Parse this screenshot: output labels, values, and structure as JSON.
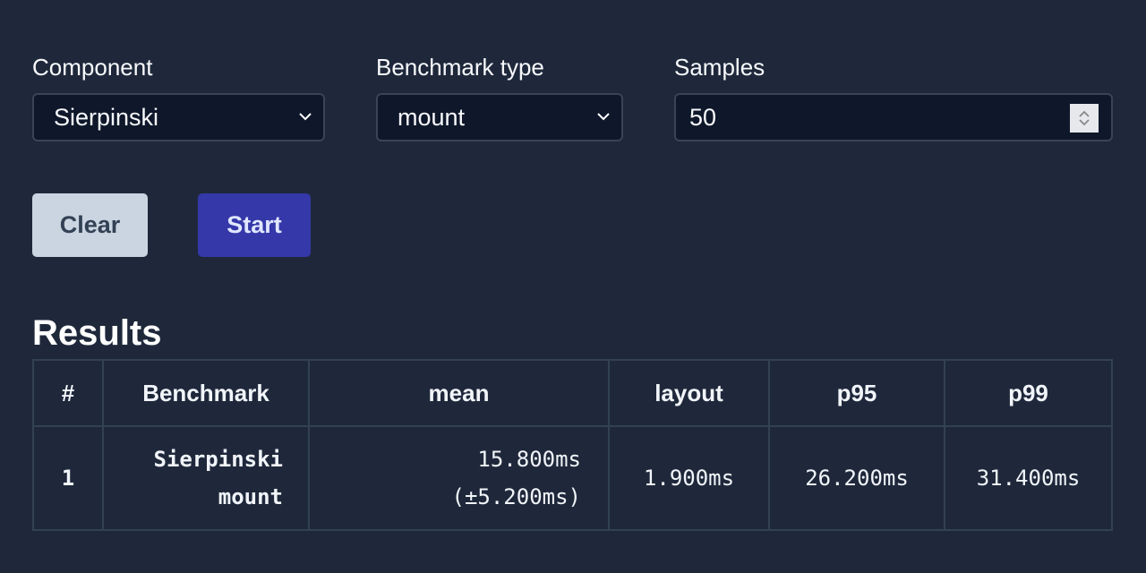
{
  "form": {
    "component": {
      "label": "Component",
      "value": "Sierpinski"
    },
    "benchmark_type": {
      "label": "Benchmark type",
      "value": "mount"
    },
    "samples": {
      "label": "Samples",
      "value": "50"
    }
  },
  "buttons": {
    "clear": "Clear",
    "start": "Start"
  },
  "colors": {
    "background": "#1f283b",
    "clear_bg": "#cbd5e1",
    "start_bg": "#3538a8"
  },
  "results": {
    "title": "Results",
    "columns": [
      "#",
      "Benchmark",
      "mean",
      "layout",
      "p95",
      "p99"
    ],
    "rows": [
      {
        "index": "1",
        "benchmark_line1": "Sierpinski",
        "benchmark_line2": "mount",
        "mean": "15.800ms",
        "mean_dev": "(±5.200ms)",
        "layout": "1.900ms",
        "p95": "26.200ms",
        "p99": "31.400ms"
      }
    ]
  }
}
